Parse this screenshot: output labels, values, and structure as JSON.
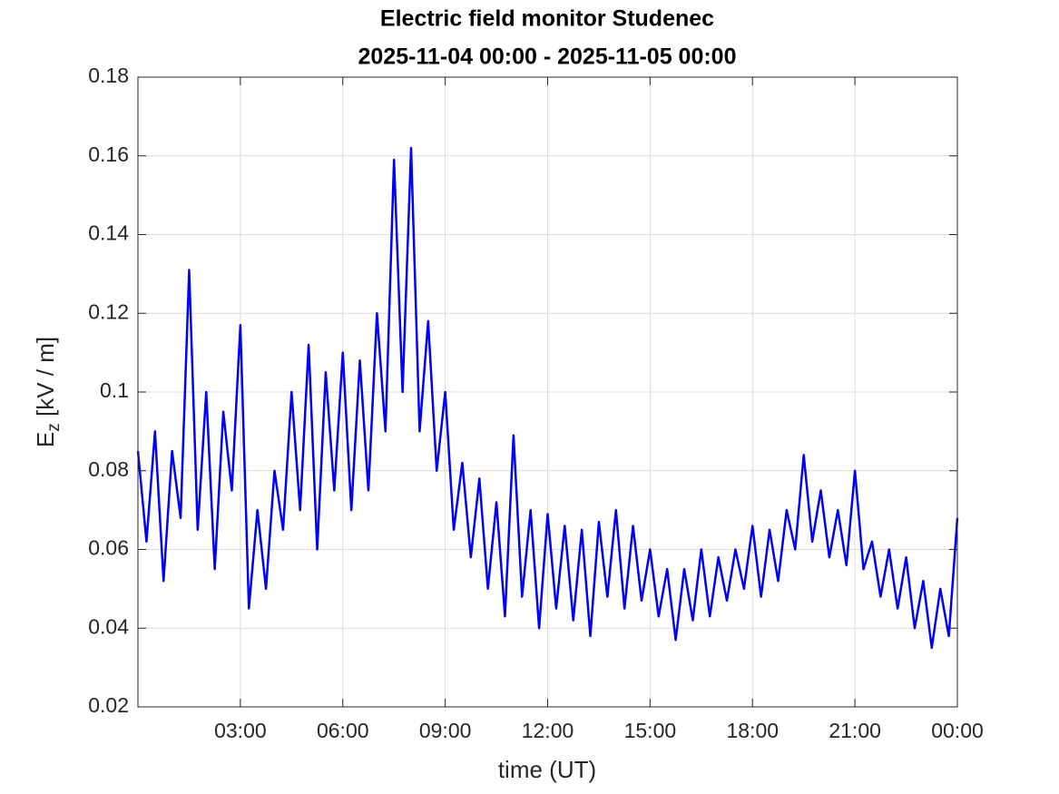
{
  "chart_data": {
    "type": "line",
    "title": "Electric field monitor Studenec",
    "subtitle": "2025-11-04 00:00 - 2025-11-05 00:00",
    "xlabel": "time (UT)",
    "ylabel": {
      "base": "E",
      "subscript": "z",
      "rest": " [kV / m]"
    },
    "x": [
      0,
      0.25,
      0.5,
      0.75,
      1,
      1.25,
      1.5,
      1.75,
      2,
      2.25,
      2.5,
      2.75,
      3,
      3.25,
      3.5,
      3.75,
      4,
      4.25,
      4.5,
      4.75,
      5,
      5.25,
      5.5,
      5.75,
      6,
      6.25,
      6.5,
      6.75,
      7,
      7.25,
      7.5,
      7.75,
      8,
      8.25,
      8.5,
      8.75,
      9,
      9.25,
      9.5,
      9.75,
      10,
      10.25,
      10.5,
      10.75,
      11,
      11.25,
      11.5,
      11.75,
      12,
      12.25,
      12.5,
      12.75,
      13,
      13.25,
      13.5,
      13.75,
      14,
      14.25,
      14.5,
      14.75,
      15,
      15.25,
      15.5,
      15.75,
      16,
      16.25,
      16.5,
      16.75,
      17,
      17.25,
      17.5,
      17.75,
      18,
      18.25,
      18.5,
      18.75,
      19,
      19.25,
      19.5,
      19.75,
      20,
      20.25,
      20.5,
      20.75,
      21,
      21.25,
      21.5,
      21.75,
      22,
      22.25,
      22.5,
      22.75,
      23,
      23.25,
      23.5,
      23.75,
      24
    ],
    "series": [
      {
        "color": "#0000ff",
        "values": [
          0.085,
          0.062,
          0.09,
          0.052,
          0.085,
          0.068,
          0.131,
          0.065,
          0.1,
          0.055,
          0.095,
          0.075,
          0.117,
          0.045,
          0.07,
          0.05,
          0.08,
          0.065,
          0.1,
          0.07,
          0.112,
          0.06,
          0.105,
          0.075,
          0.11,
          0.07,
          0.108,
          0.075,
          0.12,
          0.09,
          0.159,
          0.1,
          0.162,
          0.09,
          0.118,
          0.08,
          0.1,
          0.065,
          0.082,
          0.058,
          0.078,
          0.05,
          0.072,
          0.043,
          0.089,
          0.048,
          0.07,
          0.04,
          0.069,
          0.045,
          0.066,
          0.042,
          0.065,
          0.038,
          0.067,
          0.048,
          0.07,
          0.045,
          0.066,
          0.047,
          0.06,
          0.043,
          0.055,
          0.037,
          0.055,
          0.042,
          0.06,
          0.043,
          0.058,
          0.047,
          0.06,
          0.05,
          0.066,
          0.048,
          0.065,
          0.052,
          0.07,
          0.06,
          0.084,
          0.062,
          0.075,
          0.058,
          0.07,
          0.056,
          0.08,
          0.055,
          0.062,
          0.048,
          0.06,
          0.045,
          0.058,
          0.04,
          0.052,
          0.035,
          0.05,
          0.038,
          0.068
        ]
      }
    ],
    "xlim": [
      0,
      24
    ],
    "xticks": [
      {
        "value": 3,
        "label": "03:00"
      },
      {
        "value": 6,
        "label": "06:00"
      },
      {
        "value": 9,
        "label": "09:00"
      },
      {
        "value": 12,
        "label": "12:00"
      },
      {
        "value": 15,
        "label": "15:00"
      },
      {
        "value": 18,
        "label": "18:00"
      },
      {
        "value": 21,
        "label": "21:00"
      },
      {
        "value": 24,
        "label": "00:00"
      }
    ],
    "ylim": [
      0.02,
      0.18
    ],
    "yticks": [
      0.02,
      0.04,
      0.06,
      0.08,
      0.1,
      0.12,
      0.14,
      0.16,
      0.18
    ],
    "grid": true
  }
}
